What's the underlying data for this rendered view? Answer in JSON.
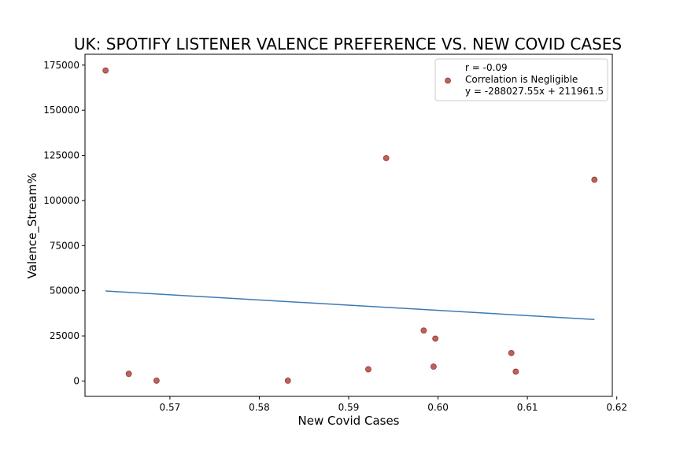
{
  "chart_data": {
    "type": "scatter",
    "title": "UK: SPOTIFY LISTENER VALENCE PREFERENCE VS. NEW COVID CASES",
    "xlabel": "New Covid Cases",
    "ylabel": "Valence_Stream%",
    "xlim": [
      0.5605,
      0.6195
    ],
    "ylim": [
      -8500,
      181000
    ],
    "xticks": [
      0.57,
      0.58,
      0.59,
      0.6,
      0.61,
      0.62
    ],
    "xtick_labels": [
      "0.57",
      "0.58",
      "0.59",
      "0.60",
      "0.61",
      "0.62"
    ],
    "yticks": [
      0,
      25000,
      50000,
      75000,
      100000,
      125000,
      150000,
      175000
    ],
    "ytick_labels": [
      "0",
      "25000",
      "50000",
      "75000",
      "100000",
      "125000",
      "150000",
      "175000"
    ],
    "grid": false,
    "legend_placement": "top-right",
    "legend_lines": [
      "r = -0.09",
      "Correlation is Negligible",
      "y = -288027.55x + 211961.5"
    ],
    "point_color": "#c0605a",
    "point_edge_color": "#8b3a36",
    "line_color": "#3b7bb5",
    "points": [
      {
        "x": 0.5628,
        "y": 172000
      },
      {
        "x": 0.5654,
        "y": 4000
      },
      {
        "x": 0.5685,
        "y": 200
      },
      {
        "x": 0.5832,
        "y": 200
      },
      {
        "x": 0.5922,
        "y": 6500
      },
      {
        "x": 0.5942,
        "y": 123500
      },
      {
        "x": 0.5984,
        "y": 28000
      },
      {
        "x": 0.5995,
        "y": 8000
      },
      {
        "x": 0.5997,
        "y": 23500
      },
      {
        "x": 0.6082,
        "y": 15500
      },
      {
        "x": 0.6087,
        "y": 5200
      },
      {
        "x": 0.6175,
        "y": 111500
      }
    ],
    "regression": {
      "slope": -288027.55,
      "intercept": 211961.5,
      "x_range": [
        0.5628,
        0.6175
      ]
    }
  }
}
